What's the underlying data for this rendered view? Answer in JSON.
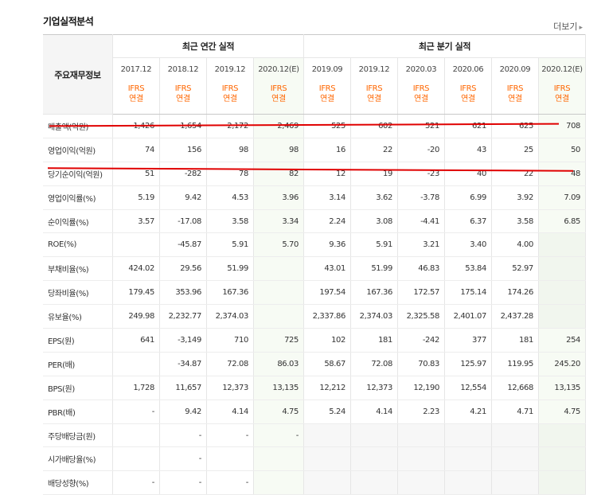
{
  "title": "기업실적분석",
  "more_label": "더보기",
  "header": {
    "row_label": "주요재무정보",
    "annual_group": "최근 연간 실적",
    "quarter_group": "최근 분기 실적",
    "periods": [
      {
        "label": "2017.12",
        "est": false
      },
      {
        "label": "2018.12",
        "est": false
      },
      {
        "label": "2019.12",
        "est": false
      },
      {
        "label": "2020.12(E)",
        "est": true
      },
      {
        "label": "2019.09",
        "est": false
      },
      {
        "label": "2019.12",
        "est": false
      },
      {
        "label": "2020.03",
        "est": false
      },
      {
        "label": "2020.06",
        "est": false
      },
      {
        "label": "2020.09",
        "est": false
      },
      {
        "label": "2020.12(E)",
        "est": true
      }
    ],
    "ifrs_line1": "IFRS",
    "ifrs_line2": "연결"
  },
  "rows": [
    {
      "label": "매출액(억원)",
      "values": [
        "1,426",
        "1,654",
        "2,172",
        "2,469",
        "525",
        "602",
        "521",
        "621",
        "625",
        "708"
      ]
    },
    {
      "label": "영업이익(억원)",
      "values": [
        "74",
        "156",
        "98",
        "98",
        "16",
        "22",
        "-20",
        "43",
        "25",
        "50"
      ]
    },
    {
      "label": "당기순이익(억원)",
      "values": [
        "51",
        "-282",
        "78",
        "82",
        "12",
        "19",
        "-23",
        "40",
        "22",
        "48"
      ]
    },
    {
      "label": "영업이익률(%)",
      "values": [
        "5.19",
        "9.42",
        "4.53",
        "3.96",
        "3.14",
        "3.62",
        "-3.78",
        "6.99",
        "3.92",
        "7.09"
      ]
    },
    {
      "label": "순이익률(%)",
      "values": [
        "3.57",
        "-17.08",
        "3.58",
        "3.34",
        "2.24",
        "3.08",
        "-4.41",
        "6.37",
        "3.58",
        "6.85"
      ]
    },
    {
      "label": "ROE(%)",
      "values": [
        "",
        "-45.87",
        "5.91",
        "5.70",
        "9.36",
        "5.91",
        "3.21",
        "3.40",
        "4.00",
        ""
      ]
    },
    {
      "label": "부채비율(%)",
      "values": [
        "424.02",
        "29.56",
        "51.99",
        "",
        "43.01",
        "51.99",
        "46.83",
        "53.84",
        "52.97",
        ""
      ]
    },
    {
      "label": "당좌비율(%)",
      "values": [
        "179.45",
        "353.96",
        "167.36",
        "",
        "197.54",
        "167.36",
        "172.57",
        "175.14",
        "174.26",
        ""
      ]
    },
    {
      "label": "유보율(%)",
      "values": [
        "249.98",
        "2,232.77",
        "2,374.03",
        "",
        "2,337.86",
        "2,374.03",
        "2,325.58",
        "2,401.07",
        "2,437.28",
        ""
      ]
    },
    {
      "label": "EPS(원)",
      "values": [
        "641",
        "-3,149",
        "710",
        "725",
        "102",
        "181",
        "-242",
        "377",
        "181",
        "254"
      ]
    },
    {
      "label": "PER(배)",
      "values": [
        "",
        "-34.87",
        "72.08",
        "86.03",
        "58.67",
        "72.08",
        "70.83",
        "125.97",
        "119.95",
        "245.20"
      ]
    },
    {
      "label": "BPS(원)",
      "values": [
        "1,728",
        "11,657",
        "12,373",
        "13,135",
        "12,212",
        "12,373",
        "12,190",
        "12,554",
        "12,668",
        "13,135"
      ]
    },
    {
      "label": "PBR(배)",
      "values": [
        "-",
        "9.42",
        "4.14",
        "4.75",
        "5.24",
        "4.14",
        "2.23",
        "4.21",
        "4.71",
        "4.75"
      ]
    },
    {
      "label": "주당배당금(원)",
      "values": [
        "",
        "-",
        "-",
        "-",
        "",
        "",
        "",
        "",
        "",
        ""
      ]
    },
    {
      "label": "시가배당율(%)",
      "values": [
        "",
        "-",
        "",
        "",
        "",
        "",
        "",
        "",
        "",
        ""
      ]
    },
    {
      "label": "배당성향(%)",
      "values": [
        "-",
        "-",
        "-",
        "",
        "",
        "",
        "",
        "",
        "",
        ""
      ]
    }
  ],
  "colors": {
    "negative": "#e02020",
    "ifrs": "#ff6600",
    "estimate_bg": "#f7fbf4",
    "annotation_line": "#e00000"
  }
}
